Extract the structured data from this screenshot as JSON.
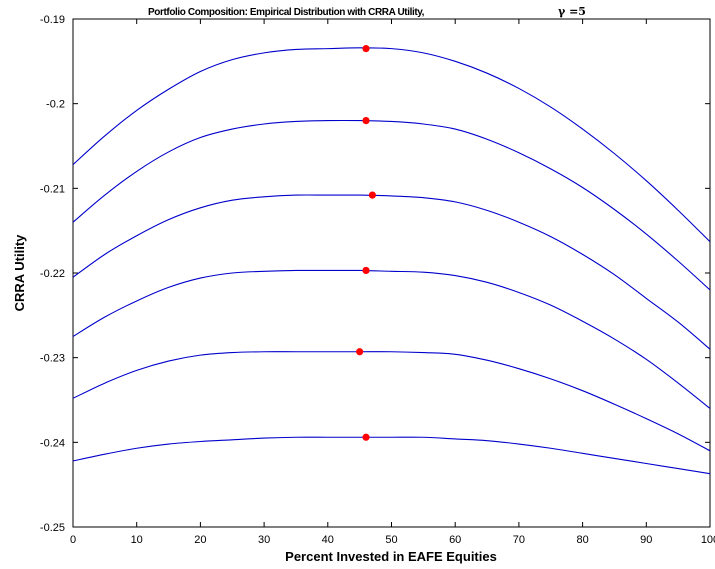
{
  "chart_data": {
    "type": "line",
    "title": "Portfolio Composition: Empirical Distribution with CRRA Utility,",
    "title_annotation": "γ =5",
    "xlabel": "Percent Invested in EAFE Equities",
    "ylabel": "CRRA Utility",
    "xlim": [
      0,
      100
    ],
    "ylim": [
      -0.25,
      -0.19
    ],
    "xticks": [
      0,
      10,
      20,
      30,
      40,
      50,
      60,
      70,
      80,
      90,
      100
    ],
    "xtick_labels": [
      "0",
      "10",
      "20",
      "30",
      "40",
      "50",
      "60",
      "70",
      "80",
      "90",
      "100"
    ],
    "yticks": [
      -0.25,
      -0.24,
      -0.23,
      -0.22,
      -0.21,
      -0.2,
      -0.19
    ],
    "ytick_labels": [
      "-0.25",
      "-0.24",
      "-0.23",
      "-0.22",
      "-0.21",
      "-0.2",
      "-0.19"
    ],
    "grid": false,
    "legend": false,
    "line_color": "#0000cc",
    "marker_color": "#ff0000",
    "x": [
      0,
      5,
      10,
      15,
      20,
      25,
      30,
      35,
      40,
      45,
      50,
      55,
      60,
      65,
      70,
      75,
      80,
      85,
      90,
      95,
      100
    ],
    "series": [
      {
        "values": [
          -0.2072,
          -0.2038,
          -0.2008,
          -0.1983,
          -0.1962,
          -0.1948,
          -0.194,
          -0.1936,
          -0.1935,
          -0.1934,
          -0.1935,
          -0.194,
          -0.195,
          -0.1964,
          -0.1982,
          -0.2004,
          -0.203,
          -0.2059,
          -0.2091,
          -0.2126,
          -0.2163
        ],
        "optimum": {
          "x": 46,
          "y": -0.1935
        }
      },
      {
        "values": [
          -0.214,
          -0.2108,
          -0.208,
          -0.2057,
          -0.204,
          -0.203,
          -0.2024,
          -0.2021,
          -0.202,
          -0.202,
          -0.2021,
          -0.2024,
          -0.203,
          -0.2042,
          -0.2058,
          -0.2077,
          -0.2099,
          -0.2125,
          -0.2154,
          -0.2186,
          -0.222
        ],
        "optimum": {
          "x": 46,
          "y": -0.202
        }
      },
      {
        "values": [
          -0.2205,
          -0.2178,
          -0.2156,
          -0.2137,
          -0.2123,
          -0.2114,
          -0.211,
          -0.2108,
          -0.2108,
          -0.2108,
          -0.2109,
          -0.2111,
          -0.2116,
          -0.2126,
          -0.214,
          -0.2157,
          -0.2178,
          -0.2202,
          -0.223,
          -0.2258,
          -0.229
        ],
        "optimum": {
          "x": 47,
          "y": -0.2108
        }
      },
      {
        "values": [
          -0.2275,
          -0.2252,
          -0.2233,
          -0.2217,
          -0.2206,
          -0.22,
          -0.2198,
          -0.2197,
          -0.2197,
          -0.2197,
          -0.2198,
          -0.2199,
          -0.2203,
          -0.2211,
          -0.2223,
          -0.2238,
          -0.2257,
          -0.2278,
          -0.2302,
          -0.233,
          -0.236
        ],
        "optimum": {
          "x": 46,
          "y": -0.2197
        }
      },
      {
        "values": [
          -0.2348,
          -0.233,
          -0.2315,
          -0.2304,
          -0.2297,
          -0.2294,
          -0.2293,
          -0.2293,
          -0.2293,
          -0.2293,
          -0.2293,
          -0.2294,
          -0.2296,
          -0.2303,
          -0.2313,
          -0.2325,
          -0.2339,
          -0.2355,
          -0.2372,
          -0.239,
          -0.241
        ],
        "optimum": {
          "x": 45,
          "y": -0.2293
        }
      },
      {
        "values": [
          -0.2422,
          -0.2414,
          -0.2407,
          -0.2402,
          -0.2399,
          -0.2397,
          -0.2395,
          -0.2394,
          -0.2394,
          -0.2394,
          -0.2394,
          -0.2394,
          -0.2396,
          -0.2398,
          -0.2402,
          -0.2407,
          -0.2413,
          -0.2419,
          -0.2425,
          -0.2431,
          -0.2437
        ],
        "optimum": {
          "x": 46,
          "y": -0.2394
        }
      }
    ]
  }
}
